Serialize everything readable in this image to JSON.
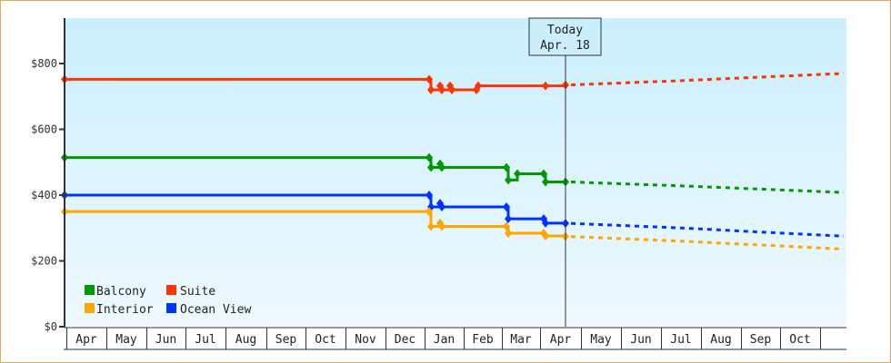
{
  "chart_data": {
    "type": "line",
    "title": "",
    "xlabel": "",
    "ylabel": "",
    "ylim": [
      0,
      900
    ],
    "y_ticks": [
      {
        "value": 0,
        "label": "$0"
      },
      {
        "value": 200,
        "label": "$200"
      },
      {
        "value": 400,
        "label": "$400"
      },
      {
        "value": 600,
        "label": "$600"
      },
      {
        "value": 800,
        "label": "$800"
      }
    ],
    "x_tick_labels": [
      "Apr",
      "May",
      "Jun",
      "Jul",
      "Aug",
      "Sep",
      "Oct",
      "Nov",
      "Dec",
      "Jan",
      "Feb",
      "Mar",
      "Apr",
      "May",
      "Jun",
      "Jul",
      "Aug",
      "Sep",
      "Oct"
    ],
    "grid": false,
    "legend_position": "bottom-left inside plot",
    "today_marker": {
      "line1": "Today",
      "line2": "Apr. 18"
    },
    "style": {
      "historical": "solid step line with diamond markers",
      "forecast": "dashed line after today"
    },
    "series": [
      {
        "name": "Suite",
        "color": "#ff3300",
        "points": [
          {
            "date": "Apr (start)",
            "value": 752
          },
          {
            "date": "Jan early",
            "value": 752
          },
          {
            "date": "Jan early",
            "value": 720
          },
          {
            "date": "Jan",
            "value": 732
          },
          {
            "date": "Jan",
            "value": 720
          },
          {
            "date": "Jan",
            "value": 732
          },
          {
            "date": "Jan",
            "value": 720
          },
          {
            "date": "Feb",
            "value": 720
          },
          {
            "date": "Feb",
            "value": 732
          },
          {
            "date": "Apr early",
            "value": 732
          },
          {
            "date": "Apr 18 (today)",
            "value": 735
          }
        ],
        "forecast": [
          {
            "date": "Apr 18",
            "value": 735
          },
          {
            "date": "Jul",
            "value": 748
          },
          {
            "date": "Oct end",
            "value": 770
          }
        ]
      },
      {
        "name": "Balcony",
        "color": "#009900",
        "points": [
          {
            "date": "Apr (start)",
            "value": 514
          },
          {
            "date": "Jan early",
            "value": 514
          },
          {
            "date": "Jan early",
            "value": 484
          },
          {
            "date": "Jan",
            "value": 495
          },
          {
            "date": "Jan",
            "value": 484
          },
          {
            "date": "Mar early",
            "value": 484
          },
          {
            "date": "Mar early",
            "value": 446
          },
          {
            "date": "Mar",
            "value": 465
          },
          {
            "date": "Apr early",
            "value": 465
          },
          {
            "date": "Apr early",
            "value": 440
          },
          {
            "date": "Apr 18 (today)",
            "value": 440
          }
        ],
        "forecast": [
          {
            "date": "Apr 18",
            "value": 440
          },
          {
            "date": "Jul",
            "value": 428
          },
          {
            "date": "Oct end",
            "value": 408
          }
        ]
      },
      {
        "name": "Ocean View",
        "color": "#0033ff",
        "points": [
          {
            "date": "Apr (start)",
            "value": 400
          },
          {
            "date": "Jan early",
            "value": 400
          },
          {
            "date": "Jan early",
            "value": 364
          },
          {
            "date": "Jan",
            "value": 375
          },
          {
            "date": "Jan",
            "value": 364
          },
          {
            "date": "Mar early",
            "value": 364
          },
          {
            "date": "Mar early",
            "value": 328
          },
          {
            "date": "Apr early",
            "value": 328
          },
          {
            "date": "Apr early",
            "value": 315
          },
          {
            "date": "Apr 18 (today)",
            "value": 314
          }
        ],
        "forecast": [
          {
            "date": "Apr 18",
            "value": 314
          },
          {
            "date": "Jul",
            "value": 300
          },
          {
            "date": "Oct end",
            "value": 275
          }
        ]
      },
      {
        "name": "Interior",
        "color": "#ffa500",
        "points": [
          {
            "date": "Apr (start)",
            "value": 350
          },
          {
            "date": "Jan early",
            "value": 350
          },
          {
            "date": "Jan early",
            "value": 305
          },
          {
            "date": "Jan",
            "value": 315
          },
          {
            "date": "Jan",
            "value": 305
          },
          {
            "date": "Mar early",
            "value": 305
          },
          {
            "date": "Mar early",
            "value": 284
          },
          {
            "date": "Apr early",
            "value": 284
          },
          {
            "date": "Apr early",
            "value": 276
          },
          {
            "date": "Apr 18 (today)",
            "value": 274
          }
        ],
        "forecast": [
          {
            "date": "Apr 18",
            "value": 274
          },
          {
            "date": "Jul",
            "value": 260
          },
          {
            "date": "Oct end",
            "value": 236
          }
        ]
      }
    ]
  },
  "legend": [
    {
      "label": "Balcony",
      "color": "#009900"
    },
    {
      "label": "Suite",
      "color": "#ff3300"
    },
    {
      "label": "Interior",
      "color": "#ffa500"
    },
    {
      "label": "Ocean View",
      "color": "#0033ff"
    }
  ]
}
